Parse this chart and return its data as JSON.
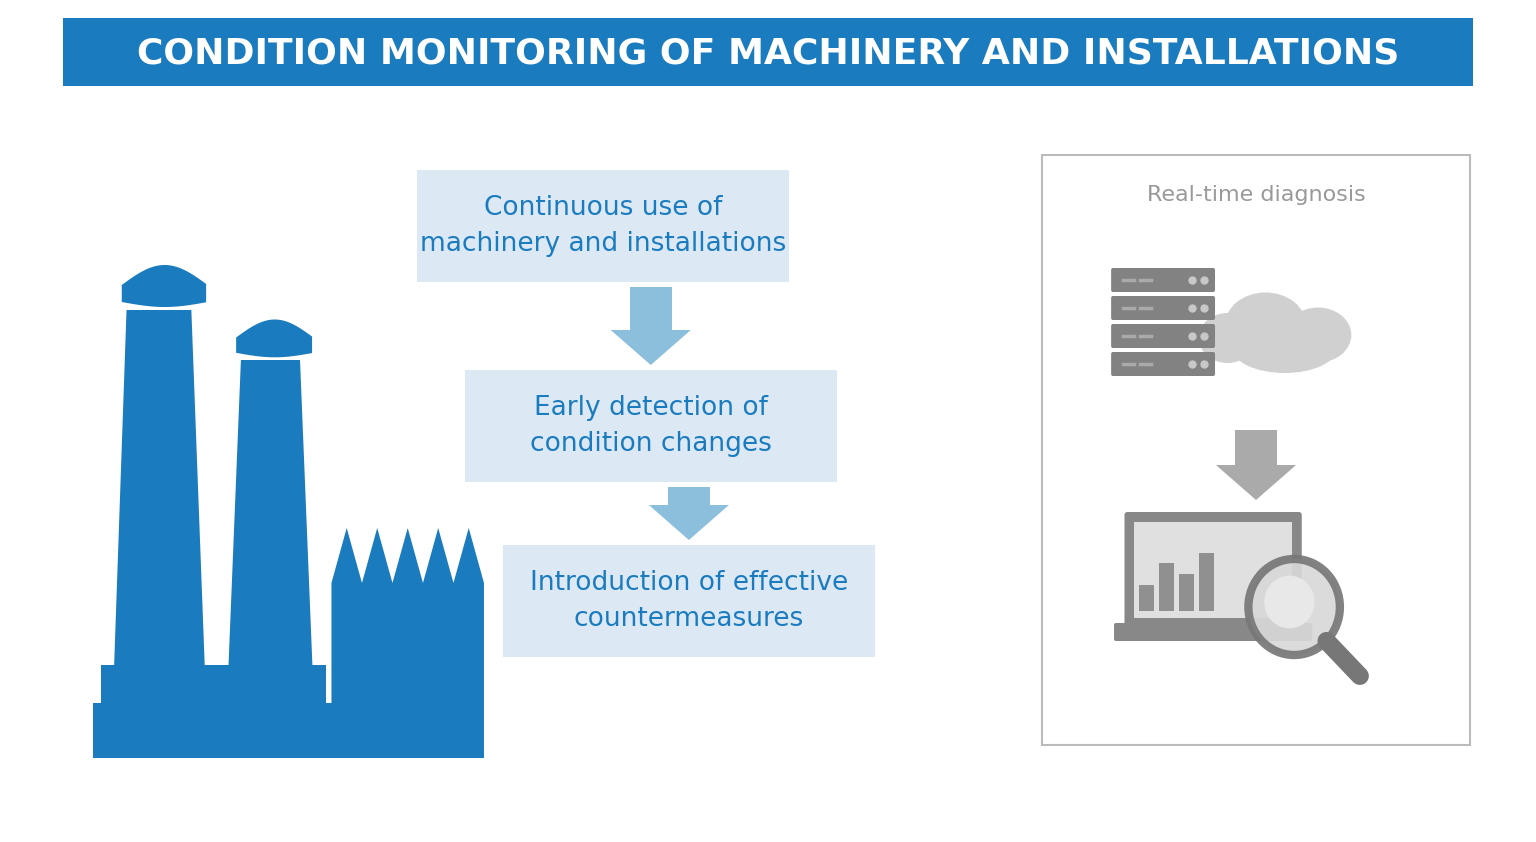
{
  "title": "CONDITION MONITORING OF MACHINERY AND INSTALLATIONS",
  "title_bg_color": "#1a7bbf",
  "title_text_color": "#ffffff",
  "background_color": "#ffffff",
  "blue": "#1a7bbf",
  "light_blue_box": "#dce9f5",
  "box_text_color": "#1a7bbf",
  "arrow_color": "#8bbfdc",
  "grey_arrow": "#aaaaaa",
  "panel_border": "#bbbbbb",
  "rtd_text_color": "#999999",
  "icon_grey": "#888888",
  "icon_light_grey": "#cccccc",
  "box1_text": "Continuous use of\nmachinery and installations",
  "box2_text": "Early detection of\ncondition changes",
  "box3_text": "Introduction of effective\ncountermeasures",
  "rtd_label": "Real-time diagnosis"
}
